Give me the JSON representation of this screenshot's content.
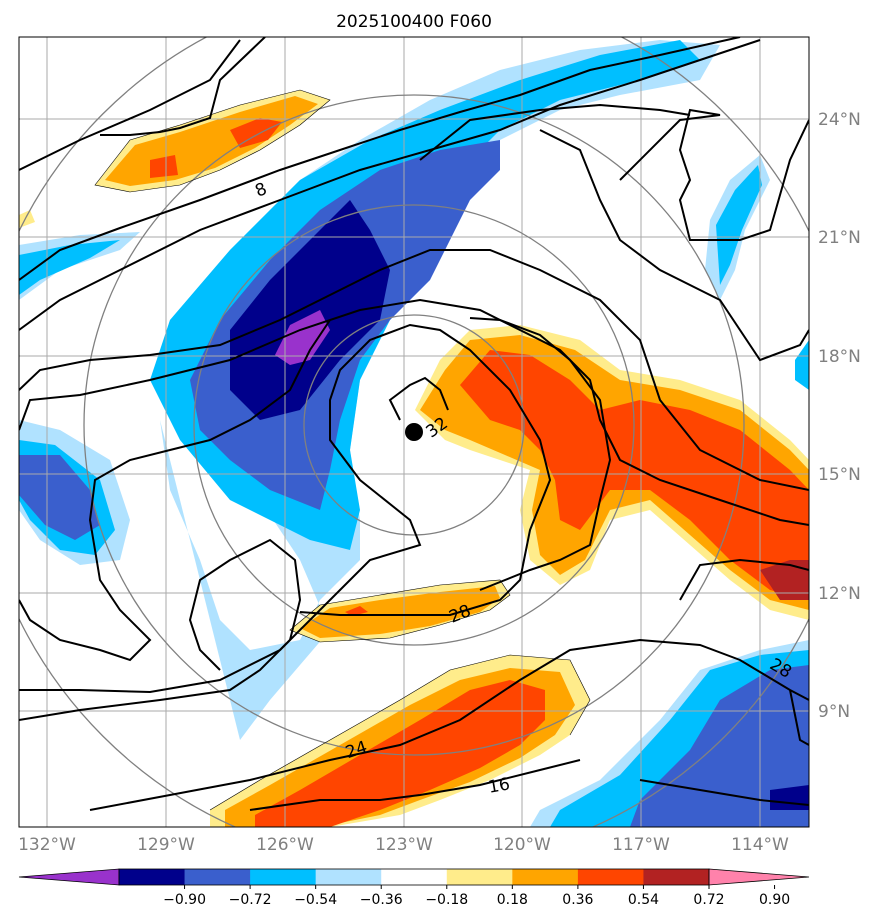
{
  "title": "2025100400 F060",
  "map": {
    "lon_labels": [
      "132°W",
      "129°W",
      "126°W",
      "123°W",
      "120°W",
      "117°W",
      "114°W"
    ],
    "lat_labels": [
      "24°N",
      "21°N",
      "18°N",
      "15°N",
      "12°N",
      "9°N"
    ],
    "lon_range": [
      -133,
      -113
    ],
    "lat_range": [
      6.6,
      26.6
    ],
    "grid": true,
    "storm_center": {
      "lon": -122.8,
      "lat": 16.1
    },
    "range_rings_count": 4,
    "contour_labels": [
      {
        "text": "8"
      },
      {
        "text": "32"
      },
      {
        "text": "28"
      },
      {
        "text": "24"
      },
      {
        "text": "16"
      },
      {
        "text": "28"
      }
    ]
  },
  "colorbar": {
    "ticks": [
      "−0.90",
      "−0.72",
      "−0.54",
      "−0.36",
      "−0.18",
      "0.18",
      "0.36",
      "0.54",
      "0.72",
      "0.90"
    ],
    "colors": [
      "#9932cc",
      "#00008b",
      "#3a5fcd",
      "#00bfff",
      "#b0e2ff",
      "#ffffff",
      "#ffec8b",
      "#ffa500",
      "#ff4500",
      "#b22222",
      "#ff82ab"
    ],
    "extend": "both"
  }
}
